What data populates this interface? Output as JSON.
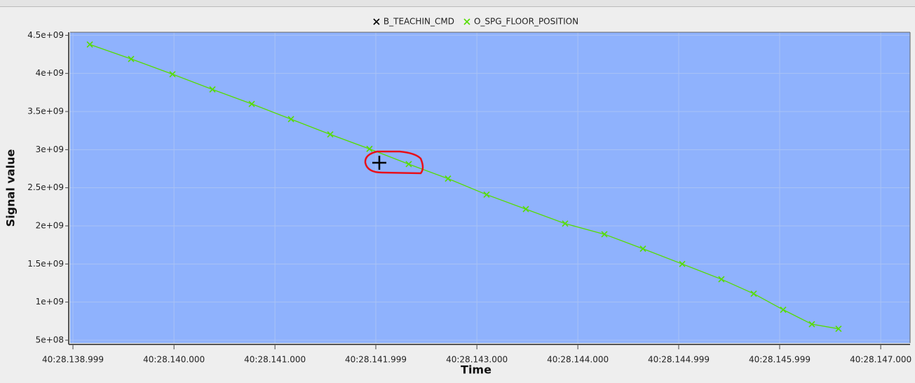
{
  "chart_data": {
    "type": "line",
    "x_label": "Time",
    "y_label": "Signal value",
    "series": [
      {
        "name": "B_TEACHIN_CMD",
        "color": "#000000",
        "x": [],
        "values": []
      },
      {
        "name": "O_SPG_FLOOR_POSITION",
        "color": "#55dd00",
        "x": [
          139.166,
          139.575,
          139.985,
          140.381,
          140.77,
          141.159,
          141.548,
          141.936,
          142.325,
          142.714,
          143.096,
          143.485,
          143.874,
          144.263,
          144.645,
          145.034,
          145.422,
          145.742,
          146.034,
          146.318,
          146.582
        ],
        "values": [
          4380000000,
          4190000000,
          3990000000,
          3790000000,
          3600000000,
          3400000000,
          3200000000,
          3010000000,
          2810000000,
          2620000000,
          2410000000,
          2220000000,
          2030000000,
          1890000000,
          1700000000,
          1500000000,
          1300000000,
          1110000000,
          900000000,
          710000000,
          650000000
        ]
      }
    ],
    "xlim": [
      138.971,
      147.291
    ],
    "xticks": [
      {
        "value": 138.999,
        "label": "40:28.138.999"
      },
      {
        "value": 140.0,
        "label": "40:28.140.000"
      },
      {
        "value": 141.0,
        "label": "40:28.141.000"
      },
      {
        "value": 141.999,
        "label": "40:28.141.999"
      },
      {
        "value": 143.0,
        "label": "40:28.143.000"
      },
      {
        "value": 144.0,
        "label": "40:28.144.000"
      },
      {
        "value": 144.999,
        "label": "40:28.144.999"
      },
      {
        "value": 145.999,
        "label": "40:28.145.999"
      },
      {
        "value": 147.0,
        "label": "40:28.147.000"
      }
    ],
    "ylim": [
      463000000,
      4540000000
    ],
    "yticks": [
      {
        "value": 500000000,
        "label": "5e+08"
      },
      {
        "value": 1000000000,
        "label": "1e+09"
      },
      {
        "value": 1500000000,
        "label": "1.5e+09"
      },
      {
        "value": 2000000000,
        "label": "2e+09"
      },
      {
        "value": 2500000000,
        "label": "2.5e+09"
      },
      {
        "value": 3000000000,
        "label": "3e+09"
      },
      {
        "value": 3500000000,
        "label": "3.5e+09"
      },
      {
        "value": 4000000000,
        "label": "4e+09"
      },
      {
        "value": 4500000000,
        "label": "4.5e+09"
      }
    ],
    "grid": true,
    "background": "#8fb2fd",
    "legend": "top"
  }
}
